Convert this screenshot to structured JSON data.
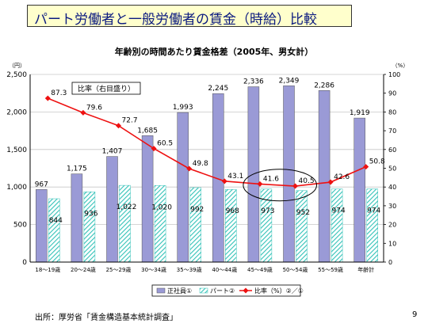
{
  "slide": {
    "title": "パート労働者と一般労働者の賃金（時給）比較",
    "source": "出所：厚労省「賃金構造基本統計調査」",
    "page_number": "9"
  },
  "chart_data": {
    "type": "bar",
    "title": "年齢別の時間あたり賃金格差（2005年、男女計）",
    "y_left_unit": "（円）",
    "y_right_unit": "（%）",
    "ylim": [
      0,
      2500
    ],
    "ylim_right": [
      0,
      100
    ],
    "y_ticks": [
      "0",
      "500",
      "1,000",
      "1,500",
      "2,000",
      "2,500"
    ],
    "y_right_ticks": [
      "0",
      "10",
      "20",
      "30",
      "40",
      "50",
      "60",
      "70",
      "80",
      "90",
      "100"
    ],
    "categories": [
      "18～19歳",
      "20～24歳",
      "25～29歳",
      "30～34歳",
      "35～39歳",
      "40～44歳",
      "45～49歳",
      "50～54歳",
      "55～59歳",
      "年齢計"
    ],
    "series": [
      {
        "name": "正社員①",
        "type": "bar",
        "color": "#9a9ad6",
        "values": [
          967,
          1175,
          1407,
          1685,
          1993,
          2245,
          2336,
          2349,
          2286,
          1919
        ],
        "labels": [
          "967",
          "1,175",
          "1,407",
          "1,685",
          "1,993",
          "2,245",
          "2,336",
          "2,349",
          "2,286",
          "1,919"
        ]
      },
      {
        "name": "パート②",
        "type": "bar-hatched",
        "color": "#33c2b8",
        "values": [
          844,
          936,
          1022,
          1020,
          992,
          968,
          973,
          952,
          974,
          974
        ],
        "labels": [
          "844",
          "936",
          "1,022",
          "1,020",
          "992",
          "968",
          "973",
          "952",
          "974",
          "974"
        ]
      },
      {
        "name": "比率（%）②／①",
        "type": "line",
        "axis": "right",
        "color": "#ee1111",
        "values": [
          87.3,
          79.6,
          72.7,
          60.5,
          49.8,
          43.1,
          41.6,
          40.5,
          42.6,
          50.8
        ],
        "labels": [
          "87.3",
          "79.6",
          "72.7",
          "60.5",
          "49.8",
          "43.1",
          "41.6",
          "40.5",
          "42.6",
          "50.8"
        ]
      }
    ],
    "annotation": "比率（右目盛り）",
    "highlight": {
      "categories": [
        "45～49歳",
        "50～54歳"
      ]
    },
    "grid": true,
    "legend": "bottom"
  }
}
